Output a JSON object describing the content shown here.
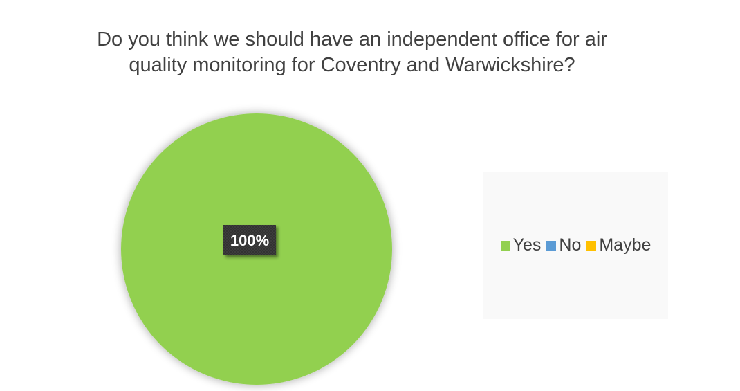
{
  "chart_data": {
    "type": "pie",
    "title": "Do you think we should have an independent office for air quality monitoring for Coventry and Warwickshire?",
    "categories": [
      "Yes",
      "No",
      "Maybe"
    ],
    "values": [
      100,
      0,
      0
    ],
    "data_labels": [
      "100%"
    ],
    "colors": [
      "#92d050",
      "#5b9bd5",
      "#ffc000"
    ],
    "legend_position": "right"
  }
}
